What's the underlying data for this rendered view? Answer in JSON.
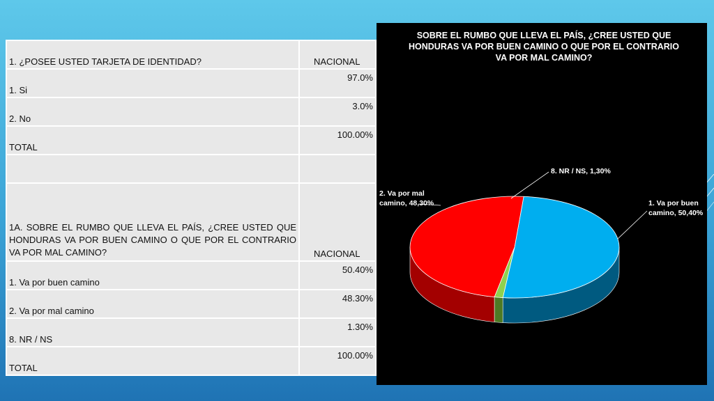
{
  "table": {
    "q1": {
      "question": "1. ¿POSEE USTED TARJETA DE IDENTIDAD?",
      "col_header": "NACIONAL"
    },
    "q1_rows": [
      {
        "label": "1. Si",
        "value": "97.0%"
      },
      {
        "label": "2. No",
        "value": "3.0%"
      },
      {
        "label": "TOTAL",
        "value": "100.00%"
      }
    ],
    "q2": {
      "question": "1A. SOBRE EL RUMBO QUE LLEVA EL PAÍS, ¿CREE USTED QUE HONDURAS VA POR BUEN CAMINO O QUE POR EL CONTRARIO VA POR MAL CAMINO?",
      "col_header": "NACIONAL"
    },
    "q2_rows": [
      {
        "label": "1. Va por buen camino",
        "value": "50.40%"
      },
      {
        "label": "2. Va por mal camino",
        "value": "48.30%"
      },
      {
        "label": "8. NR / NS",
        "value": "1.30%"
      },
      {
        "label": "TOTAL",
        "value": "100.00%"
      }
    ]
  },
  "chart_data": {
    "type": "pie",
    "title": "SOBRE EL RUMBO QUE LLEVA EL PAÍS, ¿CREE USTED QUE HONDURAS VA POR BUEN CAMINO O QUE POR EL CONTRARIO VA POR MAL CAMINO?",
    "slices": [
      {
        "name": "1. Va por buen camino",
        "value": 50.4,
        "color": "#00aeef",
        "side": "#005a80",
        "label_lines": [
          "1. Va por buen",
          "camino, 50,40%"
        ]
      },
      {
        "name": "8. NR / NS",
        "value": 1.3,
        "color": "#8fd14f",
        "side": "#4d7a24",
        "label_lines": [
          "8. NR / NS, 1,30%"
        ]
      },
      {
        "name": "2. Va por mal camino",
        "value": 48.3,
        "color": "#ff0000",
        "side": "#a30000",
        "label_lines": [
          "2. Va por mal",
          "camino, 48,30%"
        ]
      }
    ]
  }
}
